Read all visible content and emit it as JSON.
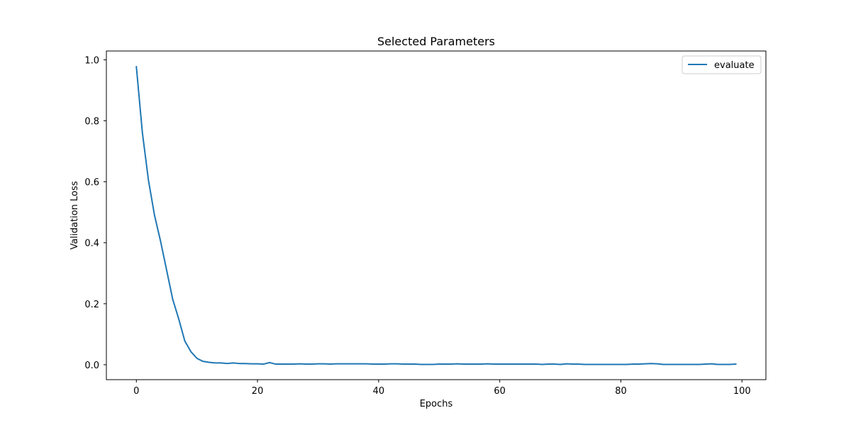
{
  "chart_data": {
    "type": "line",
    "title": "Selected Parameters",
    "xlabel": "Epochs",
    "ylabel": "Validation Loss",
    "xlim": [
      -4.95,
      103.95
    ],
    "ylim": [
      -0.049,
      1.029
    ],
    "xticks": [
      0,
      20,
      40,
      60,
      80,
      100
    ],
    "yticks": [
      0.0,
      0.2,
      0.4,
      0.6,
      0.8,
      1.0
    ],
    "xtick_labels": [
      "0",
      "20",
      "40",
      "60",
      "80",
      "100"
    ],
    "ytick_labels": [
      "0.0",
      "0.2",
      "0.4",
      "0.6",
      "0.8",
      "1.0"
    ],
    "legend_position": "top-right",
    "grid": false,
    "series": [
      {
        "name": "evaluate",
        "color": "#1f77b4",
        "x": [
          0,
          1,
          2,
          3,
          4,
          5,
          6,
          7,
          8,
          9,
          10,
          11,
          12,
          13,
          14,
          15,
          16,
          17,
          18,
          19,
          20,
          21,
          22,
          23,
          24,
          25,
          26,
          27,
          28,
          29,
          30,
          31,
          32,
          33,
          34,
          35,
          36,
          37,
          38,
          39,
          40,
          41,
          42,
          43,
          44,
          45,
          46,
          47,
          48,
          49,
          50,
          51,
          52,
          53,
          54,
          55,
          56,
          57,
          58,
          59,
          60,
          61,
          62,
          63,
          64,
          65,
          66,
          67,
          68,
          69,
          70,
          71,
          72,
          73,
          74,
          75,
          76,
          77,
          78,
          79,
          80,
          81,
          82,
          83,
          84,
          85,
          86,
          87,
          88,
          89,
          90,
          91,
          92,
          93,
          94,
          95,
          96,
          97,
          98,
          99
        ],
        "values": [
          0.978,
          0.76,
          0.605,
          0.49,
          0.405,
          0.31,
          0.215,
          0.15,
          0.078,
          0.043,
          0.021,
          0.011,
          0.008,
          0.006,
          0.006,
          0.004,
          0.006,
          0.004,
          0.004,
          0.003,
          0.003,
          0.002,
          0.007,
          0.002,
          0.002,
          0.002,
          0.002,
          0.003,
          0.002,
          0.002,
          0.003,
          0.003,
          0.002,
          0.003,
          0.003,
          0.003,
          0.003,
          0.003,
          0.003,
          0.002,
          0.002,
          0.002,
          0.003,
          0.003,
          0.002,
          0.002,
          0.002,
          0.001,
          0.001,
          0.001,
          0.002,
          0.002,
          0.002,
          0.003,
          0.002,
          0.002,
          0.002,
          0.002,
          0.003,
          0.002,
          0.002,
          0.002,
          0.002,
          0.002,
          0.002,
          0.002,
          0.002,
          0.001,
          0.002,
          0.002,
          0.001,
          0.003,
          0.002,
          0.002,
          0.001,
          0.001,
          0.001,
          0.001,
          0.001,
          0.001,
          0.001,
          0.001,
          0.002,
          0.002,
          0.003,
          0.004,
          0.003,
          0.001,
          0.001,
          0.001,
          0.001,
          0.001,
          0.001,
          0.001,
          0.002,
          0.003,
          0.001,
          0.001,
          0.001,
          0.002
        ]
      }
    ]
  }
}
